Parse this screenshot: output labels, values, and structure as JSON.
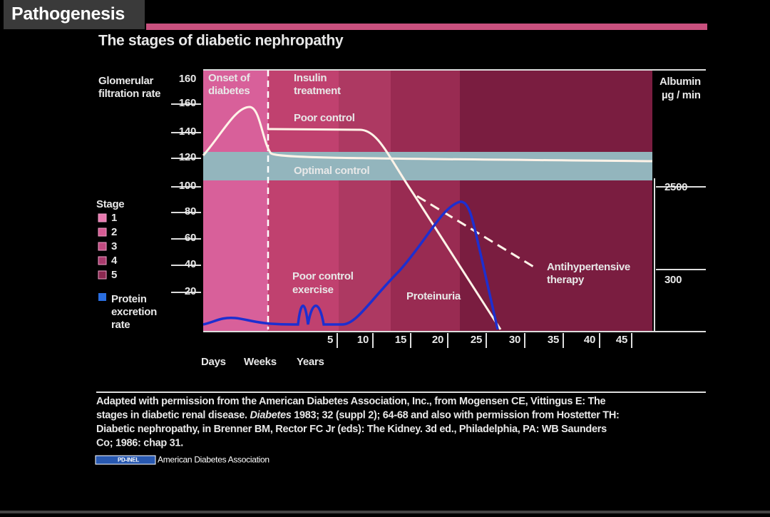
{
  "header": {
    "title": "Pathogenesis"
  },
  "figure": {
    "title": "The stages of diabetic nephropathy",
    "left_axis_label": [
      "Glomerular",
      "filtration rate"
    ],
    "left_ticks": [
      "160",
      "160",
      "140",
      "120",
      "100",
      "80",
      "60",
      "40",
      "20"
    ],
    "right_axis_label": [
      "Albumin",
      "µg / min"
    ],
    "right_ticks": [
      "2500",
      "300"
    ],
    "annotations": {
      "onset": [
        "Onset of",
        "diabetes"
      ],
      "insulin": [
        "Insulin",
        "treatment"
      ],
      "poor_control": "Poor control",
      "optimal_control": "Optimal control",
      "exercise": [
        "Poor control",
        "exercise"
      ],
      "proteinuria": "Proteinuria",
      "antihypertensive": [
        "Antihypertensive",
        "therapy"
      ]
    },
    "legend": {
      "title": "Stage",
      "items": [
        "1",
        "2",
        "3",
        "4",
        "5"
      ],
      "protein": [
        "Protein",
        "excretion",
        "rate"
      ]
    },
    "x_ticks": [
      "5",
      "10",
      "15",
      "20",
      "25",
      "30",
      "35",
      "40",
      "45"
    ],
    "x_units": [
      "Days",
      "Weeks",
      "Years"
    ]
  },
  "caption": {
    "lines": [
      [
        "Adapted with permission from the American Diabetes Association, Inc., from Mogensen CE, Vittingus E: The"
      ],
      [
        "stages in diabetic renal disease. ",
        "Diabetes",
        " 1983; 32 (suppl 2); 64-68 and also with permission from Hostetter TH:"
      ],
      [
        "Diabetic nephropathy, in Brenner BM, Rector FC Jr (eds): The Kidney. 3d ed., Philadelphia, PA: WB Saunders"
      ],
      [
        "Co; 1986: chap 31."
      ]
    ]
  },
  "license": {
    "badge": "PD-INEL",
    "text": "American Diabetes Association"
  }
}
